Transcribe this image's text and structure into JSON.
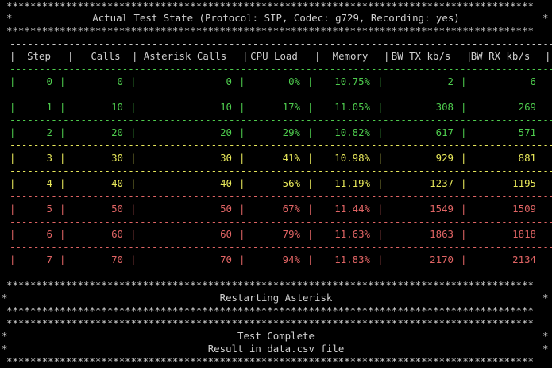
{
  "header": {
    "title": "Actual Test State (Protocol: SIP, Codec: g729, Recording: yes)"
  },
  "table": {
    "columns": [
      "Step",
      "Calls",
      "Asterisk Calls",
      "CPU Load",
      "Memory",
      "BW TX kb/s",
      "BW RX kb/s"
    ],
    "rows": [
      {
        "step": "0",
        "calls": "0",
        "asterisk_calls": "0",
        "cpu": "0%",
        "memory": "10.75%",
        "bw_tx": "2",
        "bw_rx": "6",
        "color": "#4ecc4e"
      },
      {
        "step": "1",
        "calls": "10",
        "asterisk_calls": "10",
        "cpu": "17%",
        "memory": "11.05%",
        "bw_tx": "308",
        "bw_rx": "269",
        "color": "#4ecc4e"
      },
      {
        "step": "2",
        "calls": "20",
        "asterisk_calls": "20",
        "cpu": "29%",
        "memory": "10.82%",
        "bw_tx": "617",
        "bw_rx": "571",
        "color": "#4ecc4e"
      },
      {
        "step": "3",
        "calls": "30",
        "asterisk_calls": "30",
        "cpu": "41%",
        "memory": "10.98%",
        "bw_tx": "929",
        "bw_rx": "881",
        "color": "#e8e85a"
      },
      {
        "step": "4",
        "calls": "40",
        "asterisk_calls": "40",
        "cpu": "56%",
        "memory": "11.19%",
        "bw_tx": "1237",
        "bw_rx": "1195",
        "color": "#e8e85a"
      },
      {
        "step": "5",
        "calls": "50",
        "asterisk_calls": "50",
        "cpu": "67%",
        "memory": "11.44%",
        "bw_tx": "1549",
        "bw_rx": "1509",
        "color": "#e06464"
      },
      {
        "step": "6",
        "calls": "60",
        "asterisk_calls": "60",
        "cpu": "79%",
        "memory": "11.63%",
        "bw_tx": "1863",
        "bw_rx": "1818",
        "color": "#e06464"
      },
      {
        "step": "7",
        "calls": "70",
        "asterisk_calls": "70",
        "cpu": "94%",
        "memory": "11.83%",
        "bw_tx": "2170",
        "bw_rx": "2134",
        "color": "#e06464"
      }
    ]
  },
  "messages": {
    "restarting": "Restarting Asterisk",
    "complete": "Test Complete",
    "result": "Result in data.csv file"
  }
}
